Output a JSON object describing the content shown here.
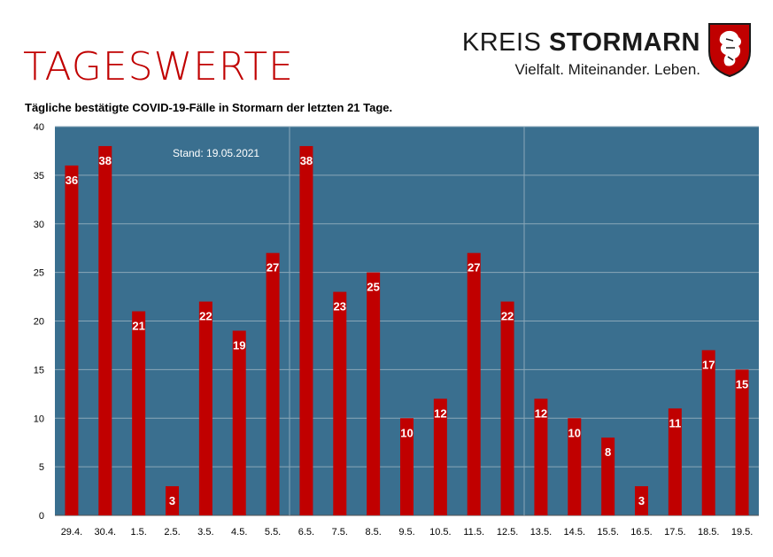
{
  "header": {
    "title": "TAGESWERTE",
    "subtitle": "Tägliche bestätigte COVID-19-Fälle in Stormarn der letzten 21 Tage.",
    "brand_light": "KREIS",
    "brand_bold": "STORMARN",
    "tagline": "Vielfalt. Miteinander. Leben."
  },
  "colors": {
    "title": "#c00000",
    "plot_background": "#3a6f8f",
    "bar": "#c00000",
    "gridline": "#8aa7b8"
  },
  "chart_data": {
    "type": "bar",
    "title": "",
    "xlabel": "",
    "ylabel": "",
    "ylim": [
      0,
      40
    ],
    "yticks": [
      0,
      5,
      10,
      15,
      20,
      25,
      30,
      35,
      40
    ],
    "grid": true,
    "annotation": "Stand: 19.05.2021",
    "categories": [
      "29.4.",
      "30.4.",
      "1.5.",
      "2.5.",
      "3.5.",
      "4.5.",
      "5.5.",
      "6.5.",
      "7.5.",
      "8.5.",
      "9.5.",
      "10.5.",
      "11.5.",
      "12.5.",
      "13.5.",
      "14.5.",
      "15.5.",
      "16.5.",
      "17.5.",
      "18.5.",
      "19.5."
    ],
    "values": [
      36,
      38,
      21,
      3,
      22,
      19,
      27,
      38,
      23,
      25,
      10,
      12,
      27,
      22,
      12,
      10,
      8,
      3,
      11,
      17,
      15
    ],
    "week_separators_after": [
      "5.5.",
      "12.5."
    ]
  }
}
